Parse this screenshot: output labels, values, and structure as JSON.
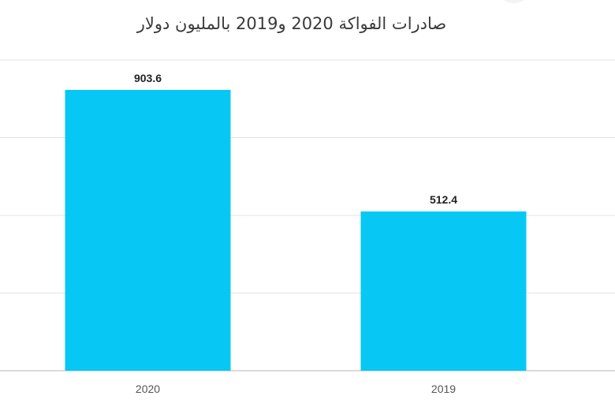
{
  "chart_data": {
    "type": "bar",
    "title": "صادرات الفواكة 2020 و2019 بالمليون دولار",
    "categories": [
      "2020",
      "2019"
    ],
    "values": [
      903.6,
      512.4
    ],
    "xlabel": "",
    "ylabel": "",
    "ylim": [
      0,
      1000
    ],
    "grid": true,
    "legend": "none",
    "colors": {
      "bar": "#07c8f4",
      "grid": "#e3e3e3",
      "axis": "#cfcfcf"
    }
  }
}
